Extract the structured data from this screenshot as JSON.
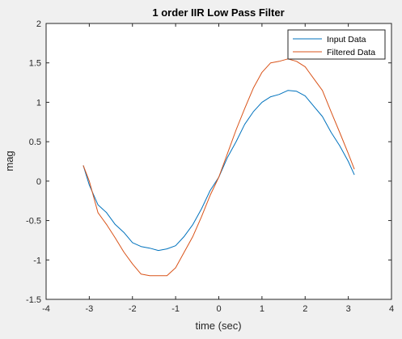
{
  "chart_data": {
    "type": "line",
    "title": "1 order IIR Low Pass Filter",
    "xlabel": "time (sec)",
    "ylabel": "mag",
    "xlim": [
      -4,
      4
    ],
    "ylim": [
      -1.5,
      2
    ],
    "xticks": [
      -4,
      -3,
      -2,
      -1,
      0,
      1,
      2,
      3,
      4
    ],
    "yticks": [
      -1.5,
      -1,
      -0.5,
      0,
      0.5,
      1,
      1.5,
      2
    ],
    "xtick_labels": [
      "-4",
      "-3",
      "-2",
      "-1",
      "0",
      "1",
      "2",
      "3",
      "4"
    ],
    "ytick_labels": [
      "-1.5",
      "-1",
      "-0.5",
      "0",
      "0.5",
      "1",
      "1.5",
      "2"
    ],
    "grid": false,
    "legend_position": "top-right",
    "series": [
      {
        "name": "Input Data",
        "color": "#0072bd",
        "x": [
          -3.14,
          -3.0,
          -2.8,
          -2.6,
          -2.4,
          -2.2,
          -2.0,
          -1.8,
          -1.6,
          -1.4,
          -1.2,
          -1.0,
          -0.8,
          -0.6,
          -0.4,
          -0.2,
          0.0,
          0.2,
          0.4,
          0.6,
          0.8,
          1.0,
          1.2,
          1.4,
          1.6,
          1.8,
          2.0,
          2.2,
          2.4,
          2.6,
          2.8,
          3.0,
          3.14
        ],
        "y": [
          0.2,
          -0.05,
          -0.3,
          -0.4,
          -0.55,
          -0.65,
          -0.78,
          -0.83,
          -0.85,
          -0.88,
          -0.86,
          -0.82,
          -0.7,
          -0.55,
          -0.35,
          -0.12,
          0.05,
          0.3,
          0.5,
          0.72,
          0.88,
          1.0,
          1.07,
          1.1,
          1.15,
          1.14,
          1.08,
          0.95,
          0.82,
          0.62,
          0.45,
          0.25,
          0.08
        ]
      },
      {
        "name": "Filtered Data",
        "color": "#d95319",
        "x": [
          -3.14,
          -3.0,
          -2.8,
          -2.6,
          -2.4,
          -2.2,
          -2.0,
          -1.8,
          -1.6,
          -1.4,
          -1.2,
          -1.0,
          -0.8,
          -0.6,
          -0.4,
          -0.2,
          0.0,
          0.2,
          0.4,
          0.6,
          0.8,
          1.0,
          1.2,
          1.4,
          1.6,
          1.8,
          2.0,
          2.2,
          2.4,
          2.6,
          2.8,
          3.0,
          3.14
        ],
        "y": [
          0.2,
          0.0,
          -0.4,
          -0.55,
          -0.72,
          -0.9,
          -1.05,
          -1.18,
          -1.2,
          -1.2,
          -1.2,
          -1.1,
          -0.9,
          -0.7,
          -0.45,
          -0.18,
          0.05,
          0.35,
          0.65,
          0.92,
          1.18,
          1.38,
          1.5,
          1.52,
          1.55,
          1.52,
          1.45,
          1.3,
          1.15,
          0.88,
          0.62,
          0.35,
          0.15
        ]
      }
    ]
  }
}
